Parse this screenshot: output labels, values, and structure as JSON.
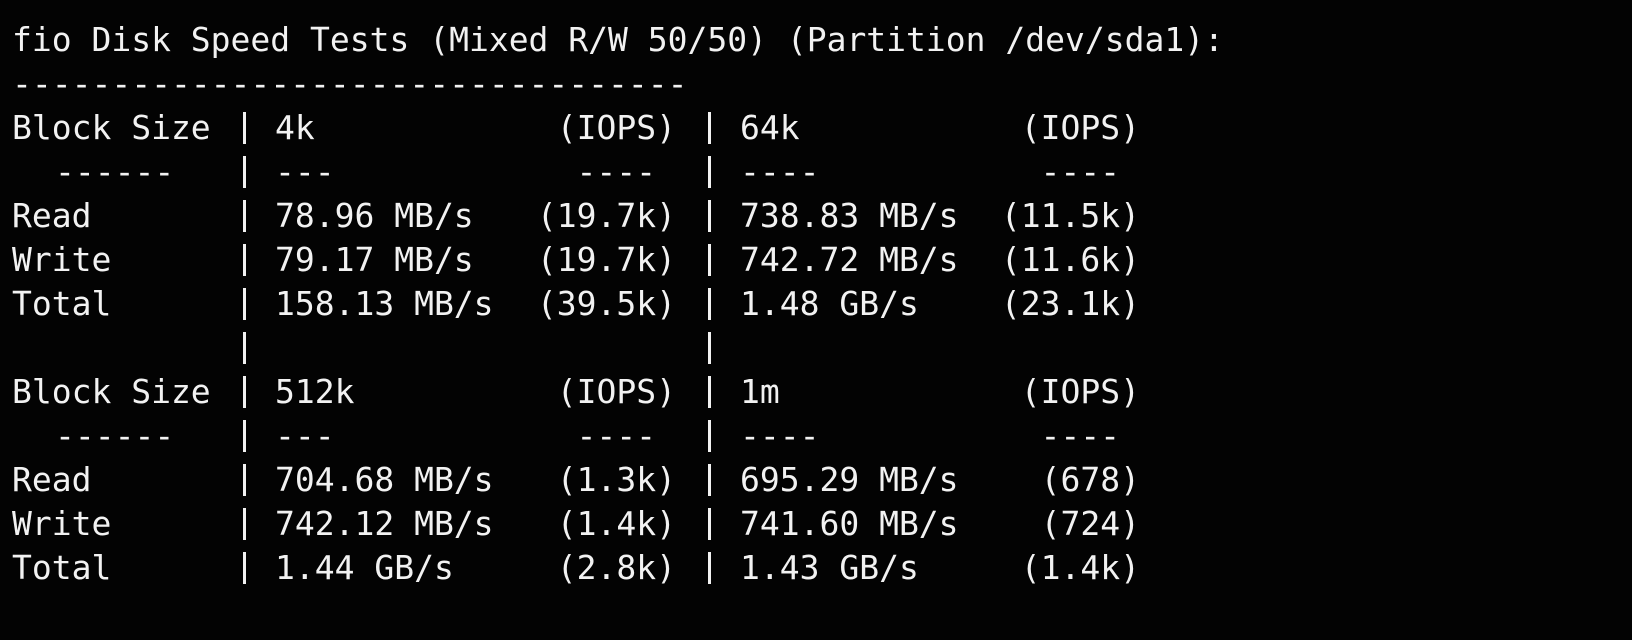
{
  "title": "fio Disk Speed Tests (Mixed R/W 50/50) (Partition /dev/sda1):",
  "separator": "----------------------------------",
  "tables": [
    {
      "header": [
        "Block Size",
        "4k",
        "(IOPS)",
        "64k",
        "(IOPS)"
      ],
      "divider": [
        "------",
        "---",
        "----",
        "----",
        "----"
      ],
      "rows": [
        [
          "Read",
          "78.96 MB/s",
          "(19.7k)",
          "738.83 MB/s",
          "(11.5k)"
        ],
        [
          "Write",
          "79.17 MB/s",
          "(19.7k)",
          "742.72 MB/s",
          "(11.6k)"
        ],
        [
          "Total",
          "158.13 MB/s",
          "(39.5k)",
          "1.48 GB/s",
          "(23.1k)"
        ]
      ]
    },
    {
      "header": [
        "Block Size",
        "512k",
        "(IOPS)",
        "1m",
        "(IOPS)"
      ],
      "divider": [
        "------",
        "---",
        "----",
        "----",
        "----"
      ],
      "rows": [
        [
          "Read",
          "704.68 MB/s",
          "(1.3k)",
          "695.29 MB/s",
          "(678)"
        ],
        [
          "Write",
          "742.12 MB/s",
          "(1.4k)",
          "741.60 MB/s",
          "(724)"
        ],
        [
          "Total",
          "1.44 GB/s",
          "(2.8k)",
          "1.43 GB/s",
          "(1.4k)"
        ]
      ]
    }
  ]
}
